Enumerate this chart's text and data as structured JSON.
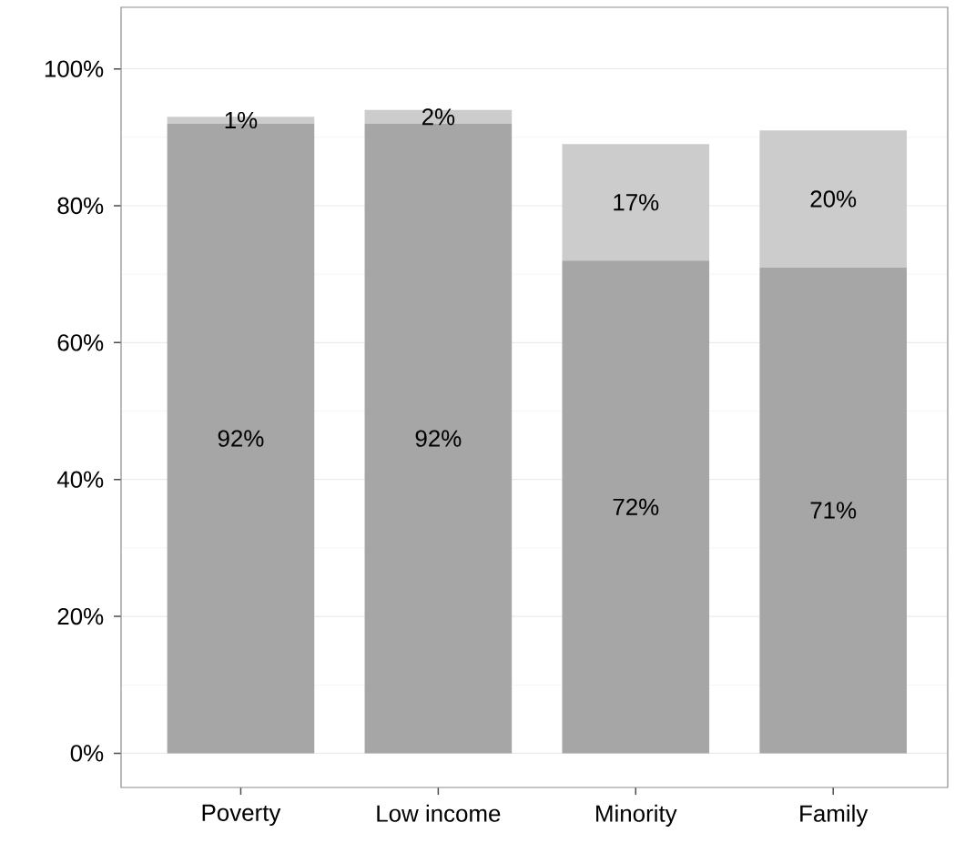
{
  "chart_data": {
    "type": "bar",
    "stacked": true,
    "categories": [
      "Poverty",
      "Low income",
      "Minority",
      "Family"
    ],
    "series": [
      {
        "color": "#a6a6a6",
        "values": [
          92,
          92,
          72,
          71
        ],
        "value_labels": [
          "92%",
          "92%",
          "72%",
          "71%"
        ]
      },
      {
        "color": "#cccccc",
        "values": [
          1,
          2,
          17,
          20
        ],
        "value_labels": [
          "1%",
          "2%",
          "17%",
          "20%"
        ]
      }
    ],
    "ylim": [
      -5,
      109
    ],
    "yticks": [
      {
        "value": 0,
        "label": "0%"
      },
      {
        "value": 20,
        "label": "20%"
      },
      {
        "value": 40,
        "label": "40%"
      },
      {
        "value": 60,
        "label": "60%"
      },
      {
        "value": 80,
        "label": "80%"
      },
      {
        "value": 100,
        "label": "100%"
      }
    ],
    "grid": "y"
  }
}
